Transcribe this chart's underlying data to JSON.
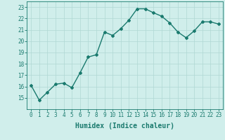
{
  "x": [
    0,
    1,
    2,
    3,
    4,
    5,
    6,
    7,
    8,
    9,
    10,
    11,
    12,
    13,
    14,
    15,
    16,
    17,
    18,
    19,
    20,
    21,
    22,
    23
  ],
  "y": [
    16.1,
    14.8,
    15.5,
    16.2,
    16.3,
    15.9,
    17.2,
    18.6,
    18.8,
    20.8,
    20.5,
    21.1,
    21.85,
    22.85,
    22.85,
    22.5,
    22.2,
    21.6,
    20.8,
    20.3,
    20.9,
    21.7,
    21.7,
    21.5
  ],
  "line_color": "#1a7a6e",
  "marker": "D",
  "marker_size": 2.0,
  "bg_color": "#d0eeeb",
  "grid_color": "#b0d8d4",
  "xlabel": "Humidex (Indice chaleur)",
  "ylim": [
    14,
    23.5
  ],
  "xlim": [
    -0.5,
    23.5
  ],
  "yticks": [
    15,
    16,
    17,
    18,
    19,
    20,
    21,
    22,
    23
  ],
  "xticks": [
    0,
    1,
    2,
    3,
    4,
    5,
    6,
    7,
    8,
    9,
    10,
    11,
    12,
    13,
    14,
    15,
    16,
    17,
    18,
    19,
    20,
    21,
    22,
    23
  ],
  "tick_color": "#1a7a6e",
  "label_fontsize": 5.5,
  "xlabel_fontsize": 7.0,
  "linewidth": 1.0
}
